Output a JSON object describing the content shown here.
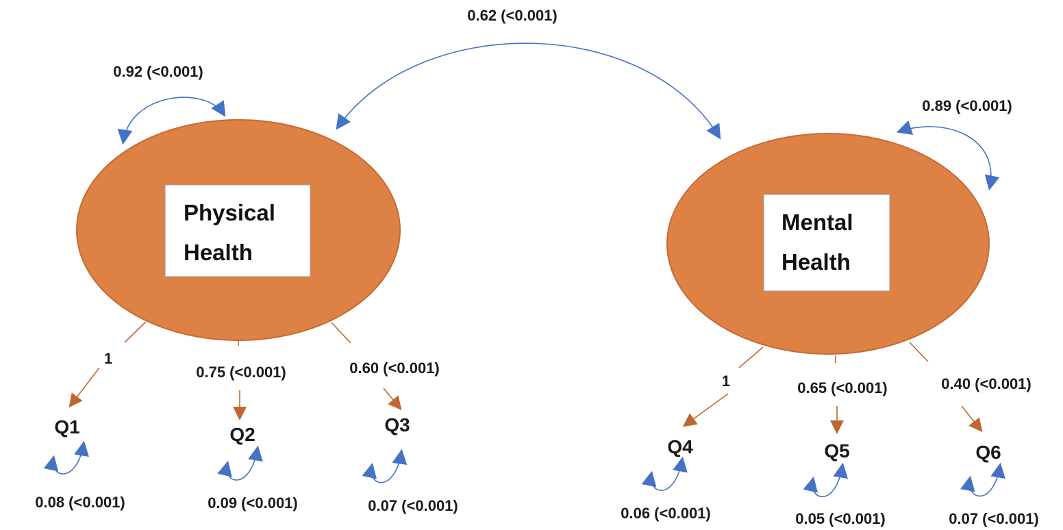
{
  "colors": {
    "factor_fill": "#DD8145",
    "factor_stroke": "#C76A33",
    "loading_arrow": "#C0672F",
    "covariance_arrow": "#4472C4",
    "text": "#1a1a1a",
    "label_box": "#ffffff"
  },
  "factors": [
    {
      "id": "physical",
      "line1": "Physical",
      "line2": "Health",
      "variance": "0.92 (<0.001)"
    },
    {
      "id": "mental",
      "line1": "Mental",
      "line2": "Health",
      "variance": "0.89 (<0.001)"
    }
  ],
  "factor_covariance": "0.62 (<0.001)",
  "items": [
    {
      "name": "Q1",
      "factor": "physical",
      "loading": "1",
      "error_variance": "0.08 (<0.001)"
    },
    {
      "name": "Q2",
      "factor": "physical",
      "loading": "0.75 (<0.001)",
      "error_variance": "0.09 (<0.001)"
    },
    {
      "name": "Q3",
      "factor": "physical",
      "loading": "0.60 (<0.001)",
      "error_variance": "0.07 (<0.001)"
    },
    {
      "name": "Q4",
      "factor": "mental",
      "loading": "1",
      "error_variance": "0.06 (<0.001)"
    },
    {
      "name": "Q5",
      "factor": "mental",
      "loading": "0.65 (<0.001)",
      "error_variance": "0.05 (<0.001)"
    },
    {
      "name": "Q6",
      "factor": "mental",
      "loading": "0.40 (<0.001)",
      "error_variance": "0.07 (<0.001)"
    }
  ]
}
